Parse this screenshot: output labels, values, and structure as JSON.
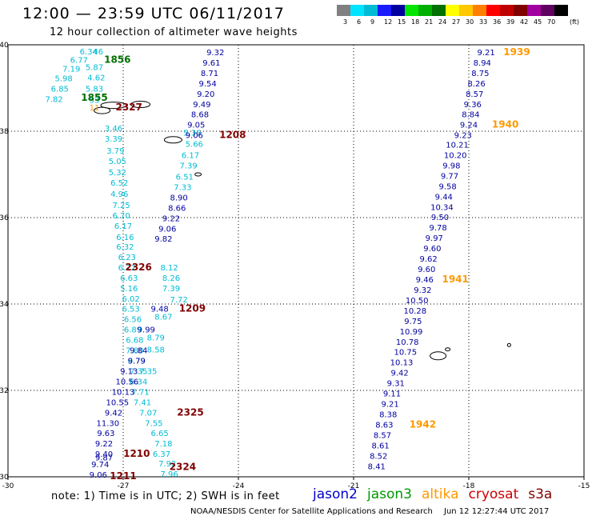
{
  "header": {
    "title": "12:00 — 23:59 UTC 06/11/2017",
    "subtitle": "12 hour collection of altimeter wave heights"
  },
  "colorbar": {
    "ticks": [
      "3",
      "6",
      "9",
      "12",
      "15",
      "18",
      "21",
      "24",
      "27",
      "30",
      "33",
      "36",
      "39",
      "42",
      "45",
      "70"
    ],
    "unit": "(ft)",
    "colors": [
      "#808080",
      "#00e5ff",
      "#00bcd4",
      "#1a1aff",
      "#0000a0",
      "#00e600",
      "#00b000",
      "#007000",
      "#ffff00",
      "#ffc800",
      "#ff8000",
      "#ff0000",
      "#c00000",
      "#800000",
      "#a000a0",
      "#600060",
      "#000000"
    ]
  },
  "footer": {
    "note": "note:  1) Time is in UTC;  2) SWH is in feet",
    "legend": [
      {
        "name": "jason2",
        "color": "#0000cc"
      },
      {
        "name": "jason3",
        "color": "#009900"
      },
      {
        "name": "altika",
        "color": "#ff9900"
      },
      {
        "name": "cryosat",
        "color": "#cc0000"
      },
      {
        "name": "s3a",
        "color": "#800000"
      }
    ],
    "credit": "NOAA/NESDIS Center for Satellite Applications and Research",
    "timestamp": "Jun 12 12:27:44 UTC 2017"
  },
  "chart_data": {
    "type": "scatter",
    "title": "12:00 — 23:59 UTC 06/11/2017",
    "subtitle": "12 hour collection of altimeter wave heights",
    "xlabel": "",
    "ylabel": "",
    "xlim": [
      -30,
      -15
    ],
    "ylim": [
      30,
      40
    ],
    "x_ticks": [
      "-30",
      "-27",
      "-24",
      "-21",
      "-18",
      "-15"
    ],
    "y_ticks": [
      "30",
      "32",
      "34",
      "36",
      "38",
      "40"
    ],
    "grid": true,
    "colors": {
      "cyan": "#00bcd4",
      "blue": "#0000a0",
      "orange": "#ff9900",
      "darkred": "#800000",
      "green": "#007000"
    },
    "series": [
      {
        "name": "jason3",
        "color": "cyan",
        "points": [
          {
            "x": -27.9,
            "y": 39.78,
            "v": "6.34"
          },
          {
            "x": -27.65,
            "y": 39.78,
            "v": "46"
          },
          {
            "x": -28.15,
            "y": 39.58,
            "v": "6.77"
          },
          {
            "x": -27.75,
            "y": 39.42,
            "v": "5.87"
          },
          {
            "x": -28.35,
            "y": 39.38,
            "v": "7.19"
          },
          {
            "x": -27.7,
            "y": 39.18,
            "v": "4.62"
          },
          {
            "x": -28.55,
            "y": 39.16,
            "v": "5.98"
          },
          {
            "x": -27.75,
            "y": 38.92,
            "v": "5.83"
          },
          {
            "x": -28.65,
            "y": 38.92,
            "v": "6.85"
          },
          {
            "x": -27.75,
            "y": 38.66,
            "v": "53"
          },
          {
            "x": -28.8,
            "y": 38.68,
            "v": "7.82"
          },
          {
            "x": -27.25,
            "y": 38.0,
            "v": "3.46"
          },
          {
            "x": -27.25,
            "y": 37.76,
            "v": "3.39"
          },
          {
            "x": -27.2,
            "y": 37.48,
            "v": "3.79"
          },
          {
            "x": -27.15,
            "y": 37.24,
            "v": "5.05"
          },
          {
            "x": -27.15,
            "y": 36.98,
            "v": "5.32"
          },
          {
            "x": -27.1,
            "y": 36.74,
            "v": "6.52"
          },
          {
            "x": -27.1,
            "y": 36.48,
            "v": "4.96"
          },
          {
            "x": -27.05,
            "y": 36.22,
            "v": "7.25"
          },
          {
            "x": -27.05,
            "y": 35.98,
            "v": "6.70"
          },
          {
            "x": -27.0,
            "y": 35.74,
            "v": "6.17"
          },
          {
            "x": -26.95,
            "y": 35.48,
            "v": "6.16"
          },
          {
            "x": -26.95,
            "y": 35.26,
            "v": "6.32"
          },
          {
            "x": -26.9,
            "y": 35.02,
            "v": "6.23"
          },
          {
            "x": -26.9,
            "y": 34.78,
            "v": "6.72"
          },
          {
            "x": -26.85,
            "y": 34.54,
            "v": "6.63"
          },
          {
            "x": -26.85,
            "y": 34.3,
            "v": "5.16"
          },
          {
            "x": -26.8,
            "y": 34.06,
            "v": "6.02"
          },
          {
            "x": -26.8,
            "y": 33.82,
            "v": "6.53"
          },
          {
            "x": -26.75,
            "y": 33.58,
            "v": "6.56"
          },
          {
            "x": -26.75,
            "y": 33.34,
            "v": "6.89"
          },
          {
            "x": -26.7,
            "y": 33.1,
            "v": "6.68"
          },
          {
            "x": -26.7,
            "y": 32.86,
            "v": "7.80"
          },
          {
            "x": -26.65,
            "y": 32.62,
            "v": "6.79"
          },
          {
            "x": -26.6,
            "y": 32.38,
            "v": "7.35"
          },
          {
            "x": -26.6,
            "y": 32.14,
            "v": "6.34"
          },
          {
            "x": -26.55,
            "y": 31.9,
            "v": "7.71"
          },
          {
            "x": -25.95,
            "y": 33.64,
            "v": "8.67"
          },
          {
            "x": -26.15,
            "y": 33.16,
            "v": "8.79"
          },
          {
            "x": -26.15,
            "y": 32.88,
            "v": "8.58"
          },
          {
            "x": -26.35,
            "y": 32.38,
            "v": "7.35"
          },
          {
            "x": -26.5,
            "y": 31.66,
            "v": "7.41"
          },
          {
            "x": -26.35,
            "y": 31.42,
            "v": "7.07"
          },
          {
            "x": -26.2,
            "y": 31.18,
            "v": "7.55"
          },
          {
            "x": -26.05,
            "y": 30.94,
            "v": "6.65"
          },
          {
            "x": -25.95,
            "y": 30.7,
            "v": "7.18"
          },
          {
            "x": -26.0,
            "y": 30.46,
            "v": "6.37"
          },
          {
            "x": -25.85,
            "y": 30.24,
            "v": "7.92"
          },
          {
            "x": -25.8,
            "y": 30.0,
            "v": "7.96"
          },
          {
            "x": -25.8,
            "y": 34.78,
            "v": "8.12"
          },
          {
            "x": -25.75,
            "y": 34.54,
            "v": "8.26"
          },
          {
            "x": -25.75,
            "y": 34.3,
            "v": "7.39"
          },
          {
            "x": -25.55,
            "y": 34.04,
            "v": "7.72"
          },
          {
            "x": -25.2,
            "y": 37.9,
            "v": "5.36"
          },
          {
            "x": -25.15,
            "y": 37.64,
            "v": "5.66"
          },
          {
            "x": -25.25,
            "y": 37.38,
            "v": "6.17"
          },
          {
            "x": -25.3,
            "y": 37.14,
            "v": "7.39"
          },
          {
            "x": -25.4,
            "y": 36.88,
            "v": "6.51"
          },
          {
            "x": -25.45,
            "y": 36.64,
            "v": "7.33"
          }
        ]
      },
      {
        "name": "jason2",
        "color": "blue",
        "points": [
          {
            "x": -24.6,
            "y": 39.76,
            "v": "9.32"
          },
          {
            "x": -24.7,
            "y": 39.52,
            "v": "9.61"
          },
          {
            "x": -24.75,
            "y": 39.28,
            "v": "8.71"
          },
          {
            "x": -24.8,
            "y": 39.04,
            "v": "9.54"
          },
          {
            "x": -24.85,
            "y": 38.8,
            "v": "9.20"
          },
          {
            "x": -24.95,
            "y": 38.56,
            "v": "9.49"
          },
          {
            "x": -25.0,
            "y": 38.32,
            "v": "8.68"
          },
          {
            "x": -25.1,
            "y": 38.08,
            "v": "9.05"
          },
          {
            "x": -25.15,
            "y": 37.84,
            "v": "9.06"
          },
          {
            "x": -25.55,
            "y": 36.4,
            "v": "8.90"
          },
          {
            "x": -25.6,
            "y": 36.16,
            "v": "8.66"
          },
          {
            "x": -25.75,
            "y": 35.92,
            "v": "9.22"
          },
          {
            "x": -25.85,
            "y": 35.68,
            "v": "9.06"
          },
          {
            "x": -25.95,
            "y": 35.44,
            "v": "9.82"
          },
          {
            "x": -26.05,
            "y": 33.82,
            "v": "9.48"
          },
          {
            "x": -26.4,
            "y": 33.34,
            "v": "9.99"
          },
          {
            "x": -26.6,
            "y": 32.86,
            "v": "9.84"
          },
          {
            "x": -26.65,
            "y": 32.62,
            "v": "9.79"
          },
          {
            "x": -26.85,
            "y": 32.38,
            "v": "9.13"
          },
          {
            "x": -26.9,
            "y": 32.14,
            "v": "10.56"
          },
          {
            "x": -27.0,
            "y": 31.9,
            "v": "10.13"
          },
          {
            "x": -27.15,
            "y": 31.66,
            "v": "10.55"
          },
          {
            "x": -27.25,
            "y": 31.42,
            "v": "9.42"
          },
          {
            "x": -27.4,
            "y": 31.18,
            "v": "11.30"
          },
          {
            "x": -27.45,
            "y": 30.94,
            "v": "9.63"
          },
          {
            "x": -27.5,
            "y": 30.7,
            "v": "9.22"
          },
          {
            "x": -27.5,
            "y": 30.46,
            "v": "9.40"
          },
          {
            "x": -27.5,
            "y": 30.38,
            "v": "9.87"
          },
          {
            "x": -27.6,
            "y": 30.22,
            "v": "9.74"
          },
          {
            "x": -27.65,
            "y": 29.98,
            "v": "9.06"
          },
          {
            "x": -17.55,
            "y": 39.76,
            "v": "9.21"
          },
          {
            "x": -17.65,
            "y": 39.52,
            "v": "8.94"
          },
          {
            "x": -17.7,
            "y": 39.28,
            "v": "8.75"
          },
          {
            "x": -17.8,
            "y": 39.04,
            "v": "8.26"
          },
          {
            "x": -17.85,
            "y": 38.8,
            "v": "8.57"
          },
          {
            "x": -17.9,
            "y": 38.56,
            "v": "9.36"
          },
          {
            "x": -17.95,
            "y": 38.32,
            "v": "8.84"
          },
          {
            "x": -18.0,
            "y": 38.08,
            "v": "9.24"
          },
          {
            "x": -18.15,
            "y": 37.84,
            "v": "9.23"
          },
          {
            "x": -18.3,
            "y": 37.62,
            "v": "10.21"
          },
          {
            "x": -18.35,
            "y": 37.38,
            "v": "10.20"
          },
          {
            "x": -18.45,
            "y": 37.14,
            "v": "9.98"
          },
          {
            "x": -18.5,
            "y": 36.9,
            "v": "9.77"
          },
          {
            "x": -18.55,
            "y": 36.66,
            "v": "9.58"
          },
          {
            "x": -18.65,
            "y": 36.42,
            "v": "9.44"
          },
          {
            "x": -18.7,
            "y": 36.18,
            "v": "10.34"
          },
          {
            "x": -18.75,
            "y": 35.94,
            "v": "9.50"
          },
          {
            "x": -18.8,
            "y": 35.7,
            "v": "9.78"
          },
          {
            "x": -18.9,
            "y": 35.46,
            "v": "9.97"
          },
          {
            "x": -18.95,
            "y": 35.22,
            "v": "9.60"
          },
          {
            "x": -19.05,
            "y": 34.98,
            "v": "9.62"
          },
          {
            "x": -19.1,
            "y": 34.74,
            "v": "9.60"
          },
          {
            "x": -19.15,
            "y": 34.5,
            "v": "9.46"
          },
          {
            "x": -19.2,
            "y": 34.26,
            "v": "9.32"
          },
          {
            "x": -19.35,
            "y": 34.02,
            "v": "10.50"
          },
          {
            "x": -19.4,
            "y": 33.78,
            "v": "10.28"
          },
          {
            "x": -19.45,
            "y": 33.54,
            "v": "9.75"
          },
          {
            "x": -19.5,
            "y": 33.3,
            "v": "10.99"
          },
          {
            "x": -19.6,
            "y": 33.06,
            "v": "10.78"
          },
          {
            "x": -19.65,
            "y": 32.82,
            "v": "10.75"
          },
          {
            "x": -19.75,
            "y": 32.58,
            "v": "10.13"
          },
          {
            "x": -19.8,
            "y": 32.34,
            "v": "9.42"
          },
          {
            "x": -19.9,
            "y": 32.1,
            "v": "9.31"
          },
          {
            "x": -20.0,
            "y": 31.86,
            "v": "9.11"
          },
          {
            "x": -20.05,
            "y": 31.62,
            "v": "9.21"
          },
          {
            "x": -20.1,
            "y": 31.38,
            "v": "8.38"
          },
          {
            "x": -20.2,
            "y": 31.14,
            "v": "8.63"
          },
          {
            "x": -20.25,
            "y": 30.9,
            "v": "8.57"
          },
          {
            "x": -20.3,
            "y": 30.66,
            "v": "8.61"
          },
          {
            "x": -20.35,
            "y": 30.42,
            "v": "8.52"
          },
          {
            "x": -20.4,
            "y": 30.18,
            "v": "8.41"
          }
        ]
      },
      {
        "name": "altika",
        "color": "orange",
        "points": [
          {
            "x": -27.75,
            "y": 38.48,
            "v": "11"
          }
        ]
      }
    ],
    "track_labels": [
      {
        "x": -27.15,
        "y": 39.58,
        "v": "1856",
        "color": "green"
      },
      {
        "x": -27.75,
        "y": 38.7,
        "v": "1855",
        "color": "green"
      },
      {
        "x": -16.75,
        "y": 39.76,
        "v": "1939",
        "color": "orange"
      },
      {
        "x": -17.05,
        "y": 38.08,
        "v": "1940",
        "color": "orange"
      },
      {
        "x": -18.35,
        "y": 34.5,
        "v": "1941",
        "color": "orange"
      },
      {
        "x": -19.2,
        "y": 31.14,
        "v": "1942",
        "color": "orange"
      },
      {
        "x": -26.85,
        "y": 38.48,
        "v": "2327",
        "color": "darkred"
      },
      {
        "x": -24.15,
        "y": 37.84,
        "v": "1208",
        "color": "darkred"
      },
      {
        "x": -26.6,
        "y": 34.78,
        "v": "2326",
        "color": "darkred"
      },
      {
        "x": -25.2,
        "y": 33.82,
        "v": "1209",
        "color": "darkred"
      },
      {
        "x": -25.25,
        "y": 31.42,
        "v": "2325",
        "color": "darkred"
      },
      {
        "x": -26.65,
        "y": 30.46,
        "v": "1210",
        "color": "darkred"
      },
      {
        "x": -25.45,
        "y": 30.16,
        "v": "2324",
        "color": "darkred"
      },
      {
        "x": -27.0,
        "y": 29.94,
        "v": "1211",
        "color": "darkred"
      }
    ]
  }
}
